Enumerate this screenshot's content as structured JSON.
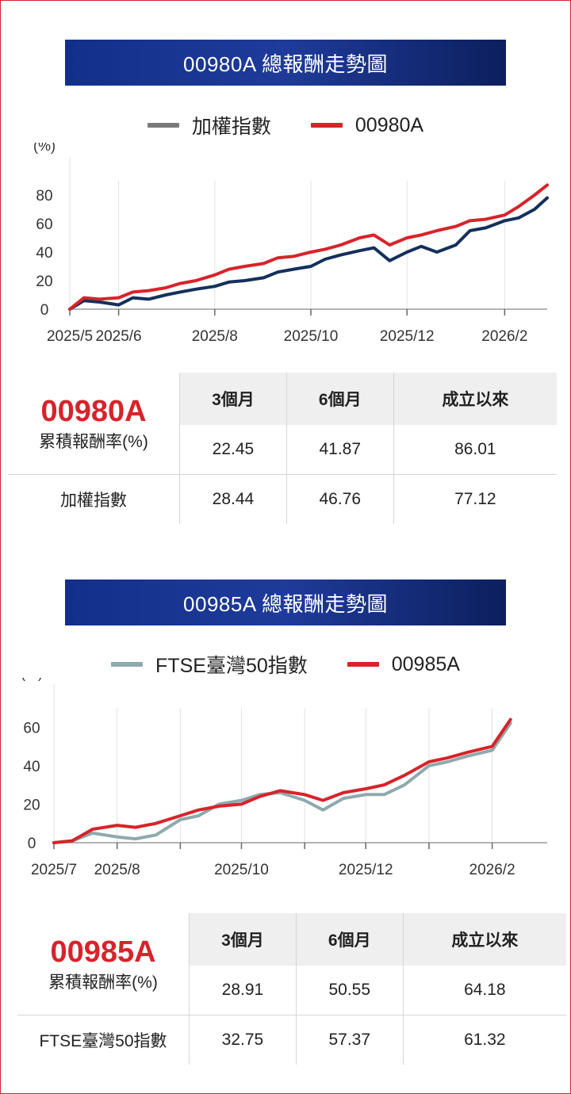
{
  "sections": [
    {
      "title": "00980A 總報酬走勢圖",
      "legend": [
        {
          "name": "加權指數",
          "color": "#7a7a7a"
        },
        {
          "name": "00980A",
          "color": "#d8232a"
        }
      ],
      "chart_data": {
        "type": "line",
        "ylabel": "(%)",
        "ylim": [
          0,
          90
        ],
        "yticks": [
          0,
          20,
          40,
          60,
          80
        ],
        "xlim": [
          "2025-05-01",
          "2026-02-28"
        ],
        "xticks": [
          {
            "date": "2025-05-01",
            "label": "2025/5"
          },
          {
            "date": "2025-06-01",
            "label": "2025/6"
          },
          {
            "date": "2025-08-01",
            "label": "2025/8"
          },
          {
            "date": "2025-10-01",
            "label": "2025/10"
          },
          {
            "date": "2025-12-01",
            "label": "2025/12"
          },
          {
            "date": "2026-02-01",
            "label": "2026/2"
          }
        ],
        "series": [
          {
            "name": "加權指數",
            "color": "#14305c",
            "x": [
              "2025-05-01",
              "2025-05-10",
              "2025-05-20",
              "2025-06-01",
              "2025-06-10",
              "2025-06-20",
              "2025-07-01",
              "2025-07-10",
              "2025-07-20",
              "2025-08-01",
              "2025-08-10",
              "2025-08-20",
              "2025-09-01",
              "2025-09-10",
              "2025-09-20",
              "2025-10-01",
              "2025-10-10",
              "2025-10-20",
              "2025-11-01",
              "2025-11-10",
              "2025-11-20",
              "2025-12-01",
              "2025-12-10",
              "2025-12-20",
              "2026-01-01",
              "2026-01-10",
              "2026-01-20",
              "2026-02-01",
              "2026-02-10",
              "2026-02-20",
              "2026-02-28"
            ],
            "y": [
              0,
              6,
              5,
              3,
              8,
              7,
              10,
              12,
              14,
              16,
              19,
              20,
              22,
              26,
              28,
              30,
              35,
              38,
              41,
              43,
              34,
              40,
              44,
              40,
              45,
              55,
              57,
              62,
              64,
              70,
              78
            ]
          },
          {
            "name": "00980A",
            "color": "#d8232a",
            "x": [
              "2025-05-01",
              "2025-05-10",
              "2025-05-20",
              "2025-06-01",
              "2025-06-10",
              "2025-06-20",
              "2025-07-01",
              "2025-07-10",
              "2025-07-20",
              "2025-08-01",
              "2025-08-10",
              "2025-08-20",
              "2025-09-01",
              "2025-09-10",
              "2025-09-20",
              "2025-10-01",
              "2025-10-10",
              "2025-10-20",
              "2025-11-01",
              "2025-11-10",
              "2025-11-20",
              "2025-12-01",
              "2025-12-10",
              "2025-12-20",
              "2026-01-01",
              "2026-01-10",
              "2026-01-20",
              "2026-02-01",
              "2026-02-10",
              "2026-02-20",
              "2026-02-28"
            ],
            "y": [
              0,
              8,
              7,
              8,
              12,
              13,
              15,
              18,
              20,
              24,
              28,
              30,
              32,
              36,
              37,
              40,
              42,
              45,
              50,
              52,
              45,
              50,
              52,
              55,
              58,
              62,
              63,
              66,
              72,
              80,
              87
            ]
          }
        ]
      },
      "table": {
        "fund_code": "00980A",
        "fund_sub": "累積報酬率(%)",
        "headers": [
          "3個月",
          "6個月",
          "成立以來"
        ],
        "fund_values": [
          "22.45",
          "41.87",
          "86.01"
        ],
        "index_name": "加權指數",
        "index_values": [
          "28.44",
          "46.76",
          "77.12"
        ]
      }
    },
    {
      "title": "00985A 總報酬走勢圖",
      "legend": [
        {
          "name": "FTSE臺灣50指數",
          "color": "#8fa9ad"
        },
        {
          "name": "00985A",
          "color": "#d8232a"
        }
      ],
      "chart_data": {
        "type": "line",
        "ylabel": "(%)",
        "ylim": [
          0,
          70
        ],
        "yticks": [
          0,
          20,
          40,
          60
        ],
        "xlim": [
          "2025-07-01",
          "2026-02-28"
        ],
        "xticks": [
          {
            "date": "2025-07-01",
            "label": "2025/7"
          },
          {
            "date": "2025-08-01",
            "label": "2025/8"
          },
          {
            "date": "2025-09-01",
            "label": ""
          },
          {
            "date": "2025-10-01",
            "label": "2025/10"
          },
          {
            "date": "2025-11-01",
            "label": ""
          },
          {
            "date": "2025-12-01",
            "label": "2025/12"
          },
          {
            "date": "2026-01-01",
            "label": ""
          },
          {
            "date": "2026-02-01",
            "label": "2026/2"
          }
        ],
        "series": [
          {
            "name": "FTSE臺灣50指數",
            "color": "#8fa9ad",
            "x": [
              "2025-07-01",
              "2025-07-10",
              "2025-07-20",
              "2025-08-01",
              "2025-08-10",
              "2025-08-20",
              "2025-09-01",
              "2025-09-10",
              "2025-09-20",
              "2025-10-01",
              "2025-10-10",
              "2025-10-20",
              "2025-11-01",
              "2025-11-10",
              "2025-11-20",
              "2025-12-01",
              "2025-12-10",
              "2025-12-20",
              "2026-01-01",
              "2026-01-10",
              "2026-01-20",
              "2026-02-01",
              "2026-02-10"
            ],
            "y": [
              0,
              1,
              5,
              3,
              2,
              4,
              12,
              14,
              20,
              22,
              25,
              26,
              22,
              17,
              23,
              25,
              25,
              30,
              40,
              42,
              45,
              48,
              62
            ]
          },
          {
            "name": "00985A",
            "color": "#d8232a",
            "x": [
              "2025-07-01",
              "2025-07-10",
              "2025-07-20",
              "2025-08-01",
              "2025-08-10",
              "2025-08-20",
              "2025-09-01",
              "2025-09-10",
              "2025-09-20",
              "2025-10-01",
              "2025-10-10",
              "2025-10-20",
              "2025-11-01",
              "2025-11-10",
              "2025-11-20",
              "2025-12-01",
              "2025-12-10",
              "2025-12-20",
              "2026-01-01",
              "2026-01-10",
              "2026-01-20",
              "2026-02-01",
              "2026-02-10"
            ],
            "y": [
              0,
              1,
              7,
              9,
              8,
              10,
              14,
              17,
              19,
              20,
              24,
              27,
              25,
              22,
              26,
              28,
              30,
              35,
              42,
              44,
              47,
              50,
              64
            ]
          }
        ]
      },
      "table": {
        "fund_code": "00985A",
        "fund_sub": "累積報酬率(%)",
        "headers": [
          "3個月",
          "6個月",
          "成立以來"
        ],
        "fund_values": [
          "28.91",
          "50.55",
          "64.18"
        ],
        "index_name": "FTSE臺灣50指數",
        "index_values": [
          "32.75",
          "57.37",
          "61.32"
        ]
      }
    }
  ]
}
